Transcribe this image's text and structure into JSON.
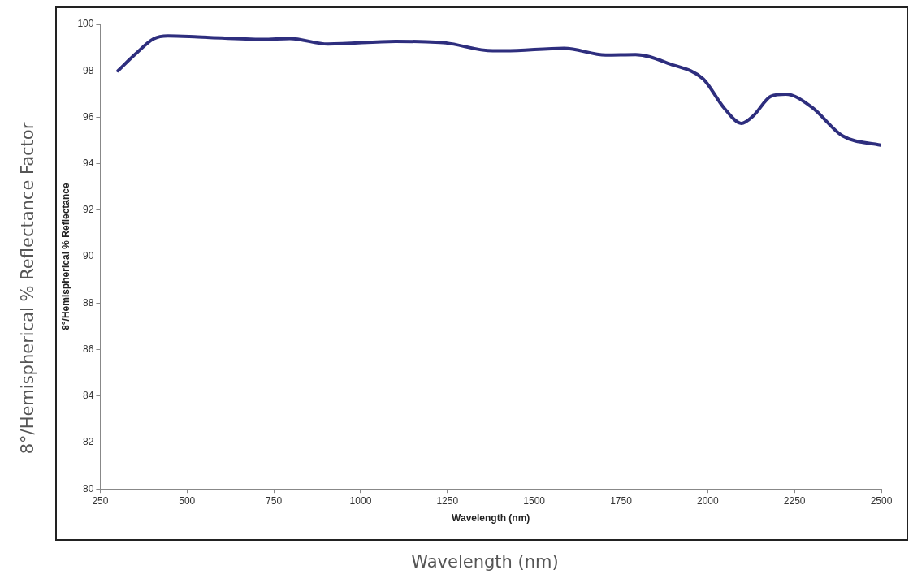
{
  "chart_data": {
    "type": "line",
    "xlabel": "Wavelength (nm)",
    "ylabel": "8°/Hemispherical % Reflectance",
    "annotations": [
      "8°/Hemispherical % Reflectance Factor",
      "Wavelength (nm)"
    ],
    "x": [
      301,
      352,
      403,
      445,
      531,
      719,
      796,
      906,
      1101,
      1229,
      1246,
      1381,
      1415,
      1586,
      1706,
      1792,
      1892,
      1987,
      2047,
      2097,
      2131,
      2182,
      2225,
      2300,
      2388,
      2498
    ],
    "series": [
      {
        "color": "#2e2e7e",
        "values": [
          98.0,
          98.73,
          99.37,
          99.5,
          99.46,
          99.35,
          99.39,
          99.15,
          99.27,
          99.22,
          99.2,
          98.86,
          98.86,
          98.97,
          98.68,
          98.7,
          98.29,
          97.65,
          96.4,
          95.74,
          96.06,
          96.9,
          96.99,
          96.43,
          95.2,
          94.8
        ]
      }
    ],
    "xlim": [
      250,
      2500
    ],
    "xticks": [
      250,
      500,
      750,
      1000,
      1250,
      1500,
      1750,
      2000,
      2250,
      2500
    ],
    "ylim": [
      80,
      100
    ],
    "yticks": [
      80,
      82,
      84,
      86,
      88,
      90,
      92,
      94,
      96,
      98,
      100
    ],
    "grid": false,
    "legend": false,
    "marker": "none",
    "line_style": "solid"
  }
}
